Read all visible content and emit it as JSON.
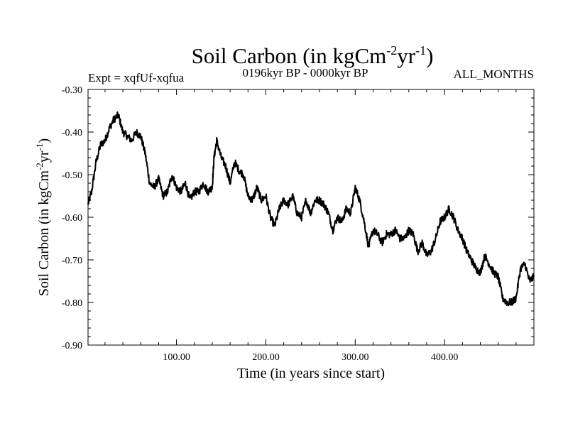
{
  "chart_data": {
    "type": "line",
    "title": "Soil Carbon (in kgCm",
    "title_sup1": "-2",
    "title_mid": "yr",
    "title_sup2": "-1",
    "title_end": ")",
    "subtitle_left": "Expt = xqfUf-xqfua",
    "subtitle_center": "0196kyr BP - 0000kyr BP",
    "subtitle_right": "ALL_MONTHS",
    "xlabel": "Time (in years since start)",
    "ylabel": "Soil Carbon (in kgCm",
    "ylabel_sup1": "-2",
    "ylabel_mid": "yr",
    "ylabel_sup2": "-1",
    "ylabel_end": ")",
    "xlim": [
      1,
      500
    ],
    "ylim": [
      -0.9,
      -0.3
    ],
    "xticks": [
      100,
      200,
      300,
      400
    ],
    "xtick_labels": [
      "100.00",
      "200.00",
      "300.00",
      "400.00"
    ],
    "yticks": [
      -0.3,
      -0.4,
      -0.5,
      -0.6,
      -0.7,
      -0.8,
      -0.9
    ],
    "ytick_labels": [
      "-0.30",
      "-0.40",
      "-0.50",
      "-0.60",
      "-0.70",
      "-0.80",
      "-0.90"
    ],
    "series": [
      {
        "name": "Soil Carbon",
        "color": "#000000",
        "x": [
          1,
          5,
          10,
          15,
          20,
          25,
          30,
          35,
          40,
          45,
          50,
          55,
          60,
          65,
          70,
          75,
          80,
          85,
          90,
          95,
          100,
          105,
          110,
          115,
          120,
          125,
          130,
          135,
          140,
          142,
          145,
          150,
          155,
          160,
          165,
          170,
          175,
          180,
          185,
          190,
          195,
          200,
          205,
          210,
          215,
          220,
          225,
          230,
          235,
          240,
          245,
          250,
          255,
          260,
          265,
          270,
          275,
          280,
          285,
          290,
          295,
          300,
          305,
          310,
          315,
          320,
          325,
          330,
          335,
          340,
          345,
          350,
          355,
          360,
          365,
          370,
          375,
          380,
          385,
          390,
          395,
          400,
          405,
          410,
          415,
          420,
          425,
          430,
          435,
          440,
          445,
          450,
          455,
          460,
          465,
          470,
          475,
          480,
          485,
          490,
          495,
          500
        ],
        "values": [
          -0.57,
          -0.54,
          -0.47,
          -0.43,
          -0.42,
          -0.39,
          -0.37,
          -0.36,
          -0.4,
          -0.41,
          -0.42,
          -0.4,
          -0.41,
          -0.45,
          -0.52,
          -0.53,
          -0.51,
          -0.55,
          -0.54,
          -0.5,
          -0.53,
          -0.54,
          -0.52,
          -0.56,
          -0.54,
          -0.54,
          -0.52,
          -0.54,
          -0.53,
          -0.46,
          -0.42,
          -0.46,
          -0.48,
          -0.52,
          -0.47,
          -0.49,
          -0.5,
          -0.55,
          -0.56,
          -0.53,
          -0.56,
          -0.55,
          -0.6,
          -0.62,
          -0.58,
          -0.56,
          -0.57,
          -0.55,
          -0.59,
          -0.6,
          -0.56,
          -0.59,
          -0.56,
          -0.56,
          -0.57,
          -0.59,
          -0.63,
          -0.6,
          -0.61,
          -0.58,
          -0.59,
          -0.53,
          -0.56,
          -0.61,
          -0.67,
          -0.63,
          -0.64,
          -0.66,
          -0.64,
          -0.64,
          -0.63,
          -0.65,
          -0.65,
          -0.63,
          -0.64,
          -0.68,
          -0.66,
          -0.69,
          -0.68,
          -0.65,
          -0.61,
          -0.6,
          -0.58,
          -0.6,
          -0.63,
          -0.65,
          -0.68,
          -0.7,
          -0.72,
          -0.73,
          -0.69,
          -0.71,
          -0.73,
          -0.74,
          -0.79,
          -0.8,
          -0.8,
          -0.79,
          -0.72,
          -0.71,
          -0.75,
          -0.74
        ]
      }
    ]
  }
}
